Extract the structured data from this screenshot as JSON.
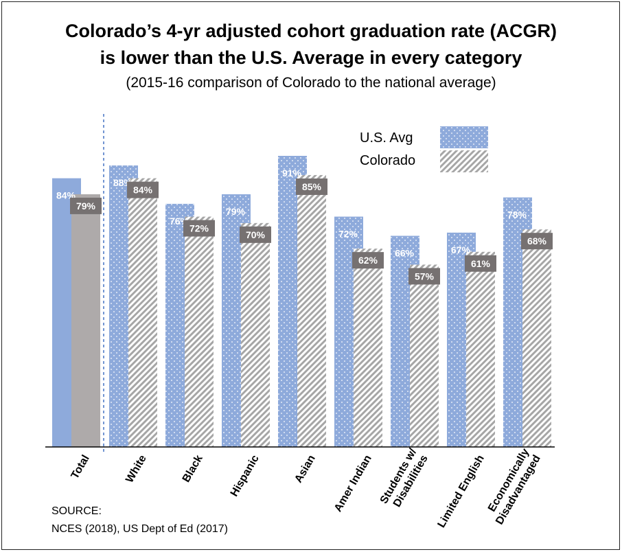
{
  "title_line1": "Colorado’s 4-yr adjusted cohort graduation rate (ACGR)",
  "title_line2": "is lower than the U.S. Average in every category",
  "subtitle": "(2015-16 comparison of Colorado to the national average)",
  "source_line1": "SOURCE:",
  "source_line2": "NCES (2018), US Dept of Ed (2017)",
  "colors": {
    "us_avg": "#8eaadb",
    "colorado_total": "#aeaaaa",
    "colorado_hatch": "#a6a6a6",
    "label_box": "#767171"
  },
  "chart_data": {
    "type": "bar",
    "title": "Colorado’s 4-yr adjusted cohort graduation rate (ACGR) is lower than the U.S. Average in every category",
    "subtitle": "(2015-16 comparison of Colorado to the national average)",
    "categories": [
      "Total",
      "White",
      "Black",
      "Hispanic",
      "Asian",
      "Amer Indian",
      "Students w/ Disabilities",
      "Limited English",
      "Economically Disadvantaged"
    ],
    "category_lines": [
      [
        "Total"
      ],
      [
        "White"
      ],
      [
        "Black"
      ],
      [
        "Hispanic"
      ],
      [
        "Asian"
      ],
      [
        "Amer Indian"
      ],
      [
        "Students w/",
        "Disabilities"
      ],
      [
        "Limited English"
      ],
      [
        "Economically",
        "Disadvantaged"
      ]
    ],
    "series": [
      {
        "name": "U.S. Avg",
        "values": [
          84,
          88,
          76,
          79,
          91,
          72,
          66,
          67,
          78
        ],
        "labels": [
          "84%",
          "88%",
          "76%",
          "79%",
          "91%",
          "72%",
          "66%",
          "67%",
          "78%"
        ]
      },
      {
        "name": "Colorado",
        "values": [
          79,
          84,
          72,
          70,
          85,
          62,
          57,
          61,
          68
        ],
        "labels": [
          "79%",
          "84%",
          "72%",
          "70%",
          "85%",
          "62%",
          "57%",
          "61%",
          "68%"
        ]
      }
    ],
    "ylim": [
      0,
      100
    ],
    "legend_position": "top-right",
    "grid": false
  }
}
